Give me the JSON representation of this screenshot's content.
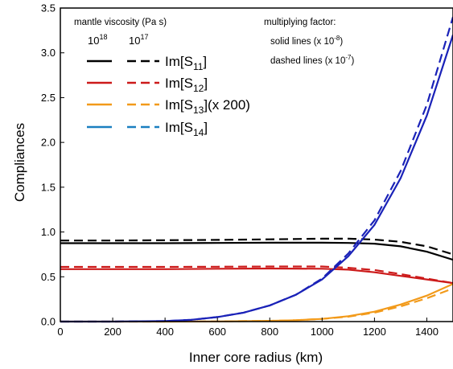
{
  "chart_data": {
    "type": "line",
    "xlabel": "Inner core radius (km)",
    "ylabel": "Compliances",
    "xlim": [
      0,
      1500
    ],
    "ylim": [
      0,
      3.5
    ],
    "xticks": [
      "0",
      "200",
      "400",
      "600",
      "800",
      "1000",
      "1200",
      "1400"
    ],
    "yticks": [
      "0.0",
      "0.5",
      "1.0",
      "1.5",
      "2.0",
      "2.5",
      "3.0",
      "3.5"
    ],
    "legend": {
      "heading": "mantle viscosity (Pa s)",
      "col_solid": {
        "base": "10",
        "exp": "18"
      },
      "col_dashed": {
        "base": "10",
        "exp": "17"
      },
      "placement": "top-left"
    },
    "note": {
      "heading": "multiplying factor:",
      "solid": {
        "text": "solid lines (x 10",
        "exp": "-8",
        "close": ")"
      },
      "dashed": {
        "text": "dashed lines (x 10",
        "exp": "-7",
        "close": ")"
      }
    },
    "series": [
      {
        "name_main": "Im[S",
        "name_sub": "11",
        "name_suffix": "]",
        "color": "#000000",
        "solid": {
          "x": [
            0,
            200,
            400,
            600,
            800,
            1000,
            1100,
            1200,
            1300,
            1400,
            1500
          ],
          "y": [
            0.875,
            0.875,
            0.875,
            0.878,
            0.88,
            0.88,
            0.878,
            0.87,
            0.84,
            0.78,
            0.69
          ]
        },
        "dashed": {
          "x": [
            0,
            200,
            400,
            600,
            800,
            1000,
            1100,
            1200,
            1300,
            1400,
            1500
          ],
          "y": [
            0.905,
            0.905,
            0.908,
            0.912,
            0.918,
            0.925,
            0.925,
            0.915,
            0.89,
            0.84,
            0.75
          ]
        }
      },
      {
        "name_main": "Im[S",
        "name_sub": "12",
        "name_suffix": "]",
        "color": "#cc1a1a",
        "solid": {
          "x": [
            0,
            200,
            400,
            600,
            800,
            1000,
            1100,
            1200,
            1300,
            1400,
            1500
          ],
          "y": [
            0.585,
            0.585,
            0.585,
            0.59,
            0.592,
            0.59,
            0.58,
            0.55,
            0.51,
            0.47,
            0.43
          ]
        },
        "dashed": {
          "x": [
            0,
            200,
            400,
            600,
            800,
            1000,
            1100,
            1200,
            1300,
            1400,
            1500
          ],
          "y": [
            0.61,
            0.61,
            0.61,
            0.612,
            0.615,
            0.615,
            0.6,
            0.575,
            0.53,
            0.48,
            0.43
          ]
        }
      },
      {
        "name_main": "Im[S",
        "name_sub": "13",
        "name_suffix": "](x 200)",
        "color": "#f29a1a",
        "solid": {
          "x": [
            0,
            200,
            400,
            600,
            800,
            900,
            1000,
            1100,
            1200,
            1300,
            1400,
            1500
          ],
          "y": [
            0,
            0,
            0,
            0.002,
            0.008,
            0.015,
            0.03,
            0.06,
            0.11,
            0.19,
            0.29,
            0.42
          ]
        },
        "dashed": {
          "x": [
            0,
            200,
            400,
            600,
            800,
            900,
            1000,
            1100,
            1200,
            1300,
            1400,
            1500
          ],
          "y": [
            0,
            0,
            0,
            0.002,
            0.008,
            0.015,
            0.03,
            0.055,
            0.1,
            0.17,
            0.26,
            0.37
          ]
        }
      },
      {
        "name_main": "Im[S",
        "name_sub": "14",
        "name_suffix": "]",
        "color": "#1a7fc0",
        "line_color": "#1a22b8",
        "solid": {
          "x": [
            0,
            200,
            400,
            500,
            600,
            700,
            800,
            900,
            1000,
            1100,
            1200,
            1300,
            1400,
            1500
          ],
          "y": [
            0,
            0,
            0.005,
            0.02,
            0.05,
            0.1,
            0.18,
            0.3,
            0.47,
            0.73,
            1.08,
            1.6,
            2.3,
            3.2
          ]
        },
        "dashed": {
          "x": [
            0,
            200,
            400,
            500,
            600,
            700,
            800,
            900,
            1000,
            1100,
            1200,
            1300,
            1400,
            1500
          ],
          "y": [
            0,
            0,
            0.005,
            0.02,
            0.05,
            0.1,
            0.18,
            0.3,
            0.48,
            0.76,
            1.13,
            1.68,
            2.42,
            3.4
          ]
        }
      }
    ]
  }
}
